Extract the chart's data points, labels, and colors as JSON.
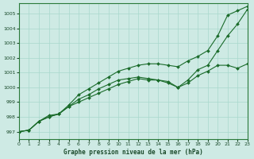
{
  "title": "Graphe pression niveau de la mer (hPa)",
  "background_color": "#ceeae4",
  "grid_color": "#a8d8cc",
  "line_color": "#1a6b2a",
  "marker_color": "#1a6b2a",
  "xlim": [
    0,
    23
  ],
  "ylim": [
    996.5,
    1005.7
  ],
  "xticks": [
    0,
    1,
    2,
    3,
    4,
    5,
    6,
    7,
    8,
    9,
    10,
    11,
    12,
    13,
    14,
    15,
    16,
    17,
    18,
    19,
    20,
    21,
    22,
    23
  ],
  "yticks": [
    997,
    998,
    999,
    1000,
    1001,
    1002,
    1003,
    1004,
    1005
  ],
  "series": [
    [
      997.0,
      997.1,
      997.7,
      998.0,
      998.2,
      998.8,
      999.5,
      999.9,
      1000.3,
      1000.7,
      1001.1,
      1001.3,
      1001.5,
      1001.6,
      1001.6,
      1001.5,
      1001.4,
      1001.8,
      1002.1,
      1002.5,
      1003.5,
      1004.9,
      1005.2,
      1005.5
    ],
    [
      997.0,
      997.1,
      997.7,
      998.0,
      998.2,
      998.7,
      999.2,
      999.5,
      999.9,
      1000.2,
      1000.5,
      1000.6,
      1000.7,
      1000.6,
      1000.5,
      1000.4,
      1000.0,
      1000.3,
      1000.8,
      1001.1,
      1001.5,
      1001.5,
      1001.3,
      1001.6
    ],
    [
      997.0,
      997.1,
      997.7,
      998.1,
      998.2,
      998.7,
      999.0,
      999.3,
      999.6,
      999.9,
      1000.2,
      1000.4,
      1000.6,
      1000.5,
      1000.5,
      1000.3,
      1000.0,
      1000.5,
      1001.2,
      1001.5,
      1002.5,
      1003.5,
      1004.3,
      1005.3
    ]
  ]
}
